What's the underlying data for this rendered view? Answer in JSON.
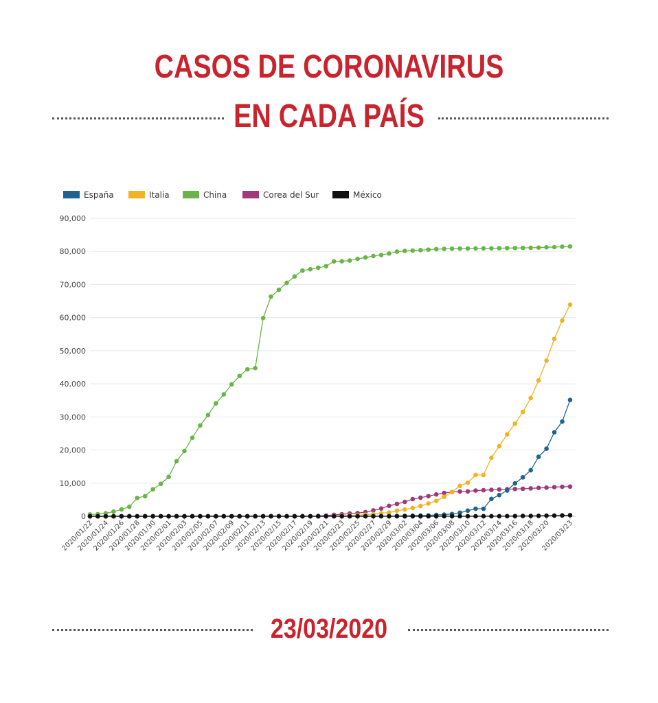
{
  "header": {
    "title_line1": "CASOS DE CORONAVIRUS",
    "title_line2": "EN CADA PAÍS"
  },
  "footer": {
    "date": "23/03/2020"
  },
  "chart_data": {
    "type": "line",
    "xlabel": "",
    "ylabel": "",
    "ylim": [
      0,
      90000
    ],
    "yticks": [
      0,
      10000,
      20000,
      30000,
      40000,
      50000,
      60000,
      70000,
      80000,
      90000
    ],
    "ytick_labels": [
      "0",
      "10,000",
      "20,000",
      "30,000",
      "40,000",
      "50,000",
      "60,000",
      "70,000",
      "80,000",
      "90,000"
    ],
    "grid": true,
    "legend_position": "top-left",
    "x": [
      "2020/01/22",
      "2020/01/23",
      "2020/01/24",
      "2020/01/25",
      "2020/01/26",
      "2020/01/27",
      "2020/01/28",
      "2020/01/29",
      "2020/01/30",
      "2020/01/31",
      "2020/02/01",
      "2020/02/02",
      "2020/02/03",
      "2020/02/04",
      "2020/02/05",
      "2020/02/06",
      "2020/02/07",
      "2020/02/08",
      "2020/02/09",
      "2020/02/10",
      "2020/02/11",
      "2020/02/12",
      "2020/02/13",
      "2020/02/14",
      "2020/02/15",
      "2020/02/16",
      "2020/02/17",
      "2020/02/18",
      "2020/02/19",
      "2020/02/20",
      "2020/02/21",
      "2020/02/22",
      "2020/02/23",
      "2020/02/24",
      "2020/02/25",
      "2020/02/26",
      "2020/02/27",
      "2020/02/28",
      "2020/02/29",
      "2020/03/01",
      "2020/03/02",
      "2020/03/03",
      "2020/03/04",
      "2020/03/05",
      "2020/03/06",
      "2020/03/07",
      "2020/03/08",
      "2020/03/09",
      "2020/03/10",
      "2020/03/11",
      "2020/03/12",
      "2020/03/13",
      "2020/03/14",
      "2020/03/15",
      "2020/03/16",
      "2020/03/17",
      "2020/03/18",
      "2020/03/19",
      "2020/03/20",
      "2020/03/21",
      "2020/03/22",
      "2020/03/23"
    ],
    "x_tick_labels": [
      "2020/01/22",
      "2020/01/24",
      "2020/01/26",
      "2020/01/28",
      "2020/01/30",
      "2020/02/01",
      "2020/02/03",
      "2020/02/05",
      "2020/02/07",
      "2020/02/09",
      "2020/02/11",
      "2020/02/13",
      "2020/02/15",
      "2020/02/17",
      "2020/02/19",
      "2020/02/21",
      "2020/02/23",
      "2020/02/25",
      "2020/02/27",
      "2020/02/29",
      "2020/03/02",
      "2020/03/04",
      "2020/03/06",
      "2020/03/08",
      "2020/03/10",
      "2020/03/12",
      "2020/03/14",
      "2020/03/16",
      "2020/03/18",
      "2020/03/20",
      "2020/03/23"
    ],
    "series": [
      {
        "name": "China",
        "color": "#6ab547",
        "values": [
          548,
          643,
          920,
          1406,
          2075,
          2877,
          5509,
          6087,
          8141,
          9802,
          11891,
          16630,
          19716,
          23707,
          27440,
          30587,
          34110,
          36814,
          39829,
          42354,
          44386,
          44759,
          59895,
          66358,
          68413,
          70513,
          72434,
          74211,
          74619,
          75077,
          75550,
          77001,
          77022,
          77241,
          77754,
          78166,
          78600,
          78928,
          79356,
          79932,
          80136,
          80261,
          80386,
          80537,
          80690,
          80770,
          80823,
          80860,
          80887,
          80921,
          80932,
          80945,
          80977,
          81003,
          81033,
          81058,
          81102,
          81156,
          81250,
          81305,
          81435,
          81498
        ]
      },
      {
        "name": "Corea del Sur",
        "color": "#9e3a79",
        "values": [
          1,
          1,
          2,
          2,
          3,
          4,
          4,
          4,
          4,
          11,
          12,
          15,
          15,
          16,
          19,
          23,
          24,
          24,
          25,
          27,
          28,
          28,
          28,
          28,
          28,
          29,
          30,
          31,
          31,
          104,
          204,
          433,
          602,
          833,
          977,
          1261,
          1766,
          2337,
          3150,
          3736,
          4335,
          5186,
          5621,
          6088,
          6593,
          7041,
          7314,
          7478,
          7513,
          7755,
          7869,
          7979,
          8086,
          8162,
          8236,
          8320,
          8413,
          8565,
          8652,
          8799,
          8897,
          8961
        ]
      },
      {
        "name": "Italia",
        "color": "#f0b323",
        "values": [
          0,
          0,
          0,
          0,
          0,
          0,
          0,
          0,
          0,
          2,
          2,
          2,
          2,
          2,
          2,
          2,
          3,
          3,
          3,
          3,
          3,
          3,
          3,
          3,
          3,
          3,
          3,
          3,
          3,
          3,
          20,
          62,
          155,
          229,
          322,
          453,
          655,
          888,
          1128,
          1694,
          2036,
          2502,
          3089,
          3858,
          4636,
          5883,
          7375,
          9172,
          10149,
          12462,
          12462,
          17660,
          21157,
          24747,
          27980,
          31506,
          35713,
          41035,
          47021,
          53578,
          59138,
          63927
        ]
      },
      {
        "name": "España",
        "color": "#1f6390",
        "values": [
          0,
          0,
          0,
          0,
          0,
          0,
          0,
          0,
          0,
          0,
          1,
          1,
          1,
          1,
          1,
          1,
          1,
          1,
          2,
          2,
          2,
          2,
          2,
          2,
          2,
          2,
          2,
          2,
          2,
          2,
          2,
          2,
          2,
          2,
          6,
          13,
          15,
          32,
          45,
          84,
          120,
          165,
          222,
          259,
          400,
          500,
          673,
          1073,
          1695,
          2277,
          2277,
          5232,
          6391,
          7798,
          9942,
          11748,
          13910,
          17963,
          20410,
          25374,
          28603,
          35136
        ]
      },
      {
        "name": "México",
        "color": "#111111",
        "values": [
          0,
          0,
          0,
          0,
          0,
          0,
          0,
          0,
          0,
          0,
          0,
          0,
          0,
          0,
          0,
          0,
          0,
          0,
          0,
          0,
          0,
          0,
          0,
          0,
          0,
          0,
          0,
          0,
          0,
          0,
          0,
          0,
          0,
          0,
          0,
          0,
          0,
          1,
          4,
          5,
          5,
          5,
          5,
          5,
          6,
          6,
          7,
          7,
          7,
          8,
          12,
          16,
          26,
          41,
          53,
          82,
          93,
          118,
          164,
          203,
          251,
          316
        ]
      }
    ],
    "legend": [
      {
        "name": "España",
        "color": "#1f6390"
      },
      {
        "name": "Italia",
        "color": "#f0b323"
      },
      {
        "name": "China",
        "color": "#6ab547"
      },
      {
        "name": "Corea del Sur",
        "color": "#9e3a79"
      },
      {
        "name": "México",
        "color": "#111111"
      }
    ]
  }
}
